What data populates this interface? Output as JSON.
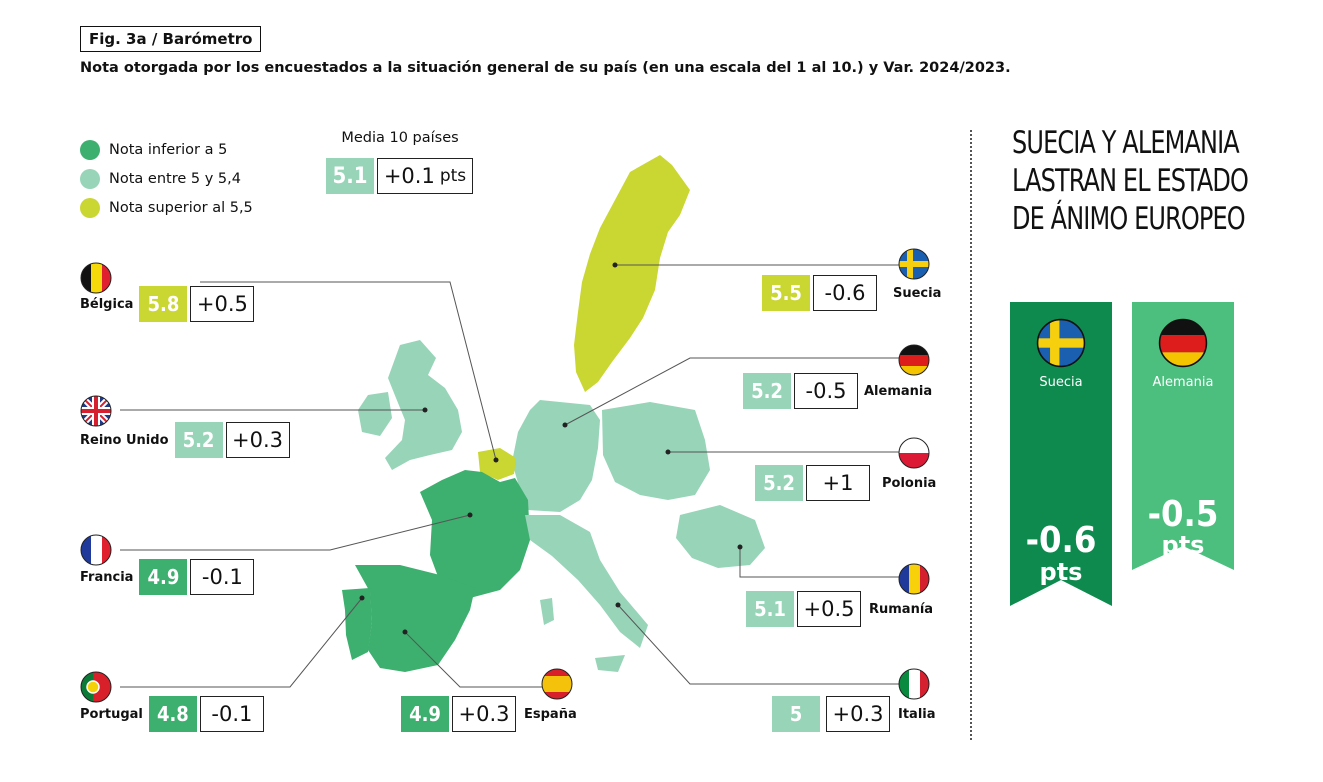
{
  "figure_tag": "Fig. 3a / Barómetro",
  "subtitle": "Nota otorgada por los encuestados a la situación general de su país (en una escala del 1 al 10.) y Var. 2024/2023.",
  "legend": [
    {
      "label": "Nota inferior a 5",
      "color": "#3daf6e"
    },
    {
      "label": "Nota entre 5 y 5,4",
      "color": "#97d4b8"
    },
    {
      "label": "Nota superior al 5,5",
      "color": "#cad631"
    }
  ],
  "average": {
    "label": "Media 10 países",
    "score": "5.1",
    "delta": "+0.1",
    "unit": "pts"
  },
  "colors": {
    "low": "#3daf6e",
    "mid": "#97d4b8",
    "high": "#cad631",
    "dark": "#0f8a4f",
    "ribbon_light": "#4cbf7f"
  },
  "chart_data": {
    "type": "table",
    "columns": [
      "Nota",
      "Var. 2024/2023"
    ],
    "rows": [
      {
        "country": "Bélgica",
        "score": 5.8,
        "delta": "+0.5",
        "flag": "belgium-flag-icon"
      },
      {
        "country": "Reino Unido",
        "score": 5.2,
        "delta": "+0.3",
        "flag": "uk-flag-icon"
      },
      {
        "country": "Francia",
        "score": 4.9,
        "delta": "-0.1",
        "flag": "france-flag-icon"
      },
      {
        "country": "Portugal",
        "score": 4.8,
        "delta": "-0.1",
        "flag": "portugal-flag-icon"
      },
      {
        "country": "España",
        "score": 4.9,
        "delta": "+0.3",
        "flag": "spain-flag-icon"
      },
      {
        "country": "Suecia",
        "score": 5.5,
        "delta": "-0.6",
        "flag": "sweden-flag-icon"
      },
      {
        "country": "Alemania",
        "score": 5.2,
        "delta": "-0.5",
        "flag": "germany-flag-icon"
      },
      {
        "country": "Polonia",
        "score": 5.2,
        "delta": "+1",
        "flag": "poland-flag-icon"
      },
      {
        "country": "Rumanía",
        "score": 5.1,
        "delta": "+0.5",
        "flag": "romania-flag-icon"
      },
      {
        "country": "Italia",
        "score": 5,
        "delta": "+0.3",
        "flag": "italy-flag-icon"
      }
    ]
  },
  "score_labels": {
    "Bélgica": "5.8",
    "Reino Unido": "5.2",
    "Francia": "4.9",
    "Portugal": "4.8",
    "España": "4.9",
    "Suecia": "5.5",
    "Alemania": "5.2",
    "Polonia": "5.2",
    "Rumanía": "5.1",
    "Italia": "5"
  },
  "sidebar": {
    "headline": "Suecia y Alemania lastran el estado de ánimo europeo",
    "ribbons": [
      {
        "country": "Suecia",
        "value": "-0.6",
        "unit": "pts"
      },
      {
        "country": "Alemania",
        "value": "-0.5",
        "unit": "pts"
      }
    ]
  }
}
